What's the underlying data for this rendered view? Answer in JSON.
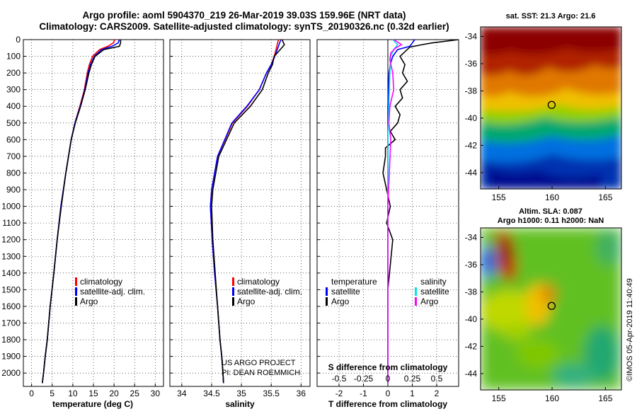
{
  "header": {
    "line1": "Argo profile: aoml 5904370_219 26-Mar-2019 39.03S 159.96E (NRT data)",
    "line2": "Climatology: CARS2009. Satellite-adjusted climatology: synTS_20190326.nc (0.32d earlier)"
  },
  "legends": {
    "climatology": "climatology",
    "satellite_adj": "satellite-adj. clim.",
    "argo": "Argo",
    "temperature": "temperature",
    "salinity": "salinity",
    "satellite": "satellite"
  },
  "credits": {
    "line1": "US ARGO PROJECT",
    "line2": "PI: DEAN ROEMMICH",
    "imos": "©IMOS 05-Apr-2019 11:40:49"
  },
  "maps": {
    "sst_title": "sat. SST: 21.3 Argo: 21.6",
    "sla_title1": "Altim. SLA: 0.087",
    "sla_title2": "Argo h1000: 0.11 h2000: NaN",
    "lat_ticks": [
      "-34",
      "-36",
      "-38",
      "-40",
      "-42",
      "-44"
    ],
    "lon_ticks": [
      "155",
      "160",
      "165"
    ],
    "float_lon": 159.96,
    "float_lat": -39.03
  },
  "colors": {
    "climatology": "#ff0000",
    "satellite_adj": "#0000ff",
    "argo": "#000000",
    "s_satellite": "#00e5e5",
    "s_argo": "#ff00ff"
  },
  "chart_data": [
    {
      "type": "line",
      "xlabel": "temperature (deg C)",
      "ylabel": "",
      "xlim": [
        -2,
        32
      ],
      "ylim": [
        2080,
        0
      ],
      "xticks": [
        0,
        5,
        10,
        15,
        20,
        25,
        30
      ],
      "yticks": [
        0,
        100,
        200,
        300,
        400,
        500,
        600,
        700,
        800,
        900,
        1000,
        1100,
        1200,
        1300,
        1400,
        1500,
        1600,
        1700,
        1800,
        1900,
        2000
      ],
      "series": [
        {
          "name": "climatology",
          "x": [
            20.2,
            19.8,
            18.5,
            16.5,
            14.8,
            14.0,
            13.5,
            12.8,
            11.7,
            10.5,
            9.6,
            8.3,
            7.1,
            6.2,
            5.4,
            4.5,
            3.8,
            3.3,
            2.9,
            2.6
          ],
          "y": [
            0,
            20,
            40,
            60,
            100,
            150,
            200,
            300,
            400,
            500,
            600,
            800,
            1000,
            1200,
            1400,
            1600,
            1800,
            1900,
            2000,
            2060
          ]
        },
        {
          "name": "satellite-adj. clim.",
          "x": [
            21.3,
            21.0,
            19.5,
            17.0,
            15.2,
            14.3,
            13.7,
            12.9,
            11.8,
            10.5,
            9.6,
            8.3,
            7.1,
            6.2,
            5.4,
            4.5,
            3.8,
            3.3,
            2.9,
            2.6
          ],
          "y": [
            0,
            20,
            40,
            60,
            100,
            150,
            200,
            300,
            400,
            500,
            600,
            800,
            1000,
            1200,
            1400,
            1600,
            1800,
            1900,
            2000,
            2060
          ]
        },
        {
          "name": "Argo",
          "x": [
            21.6,
            21.6,
            21.3,
            17.5,
            15.4,
            14.5,
            13.9,
            13.0,
            11.9,
            10.6,
            9.6,
            8.3,
            7.2,
            6.2,
            5.4,
            4.5,
            3.8,
            3.3,
            2.9,
            2.6
          ],
          "y": [
            0,
            20,
            40,
            60,
            100,
            150,
            200,
            300,
            400,
            500,
            600,
            800,
            1000,
            1200,
            1400,
            1600,
            1800,
            1900,
            2000,
            2060
          ]
        }
      ]
    },
    {
      "type": "line",
      "xlabel": "salinity",
      "ylabel": "",
      "xlim": [
        33.8,
        36.15
      ],
      "ylim": [
        2080,
        0
      ],
      "xticks": [
        34,
        34.5,
        35,
        35.5,
        36
      ],
      "series": [
        {
          "name": "climatology",
          "x": [
            35.62,
            35.6,
            35.58,
            35.55,
            35.5,
            35.42,
            35.3,
            35.1,
            34.85,
            34.6,
            34.5,
            34.48,
            34.51,
            34.55,
            34.6,
            34.64,
            34.67,
            34.69,
            34.7
          ],
          "y": [
            0,
            30,
            60,
            100,
            150,
            200,
            300,
            400,
            500,
            700,
            900,
            1000,
            1200,
            1400,
            1600,
            1800,
            1900,
            2000,
            2060
          ]
        },
        {
          "name": "satellite-adj. clim.",
          "x": [
            35.66,
            35.63,
            35.6,
            35.56,
            35.5,
            35.42,
            35.3,
            35.09,
            34.84,
            34.6,
            34.5,
            34.48,
            34.51,
            34.55,
            34.6,
            34.64,
            34.67,
            34.69,
            34.7
          ],
          "y": [
            0,
            30,
            60,
            100,
            150,
            200,
            300,
            400,
            500,
            700,
            900,
            1000,
            1200,
            1400,
            1600,
            1800,
            1900,
            2000,
            2060
          ]
        },
        {
          "name": "Argo",
          "x": [
            35.68,
            35.72,
            35.65,
            35.55,
            35.52,
            35.45,
            35.35,
            35.15,
            34.88,
            34.62,
            34.52,
            34.5,
            34.52,
            34.56,
            34.6,
            34.64,
            34.67,
            34.69,
            34.7
          ],
          "y": [
            0,
            30,
            60,
            100,
            150,
            200,
            300,
            400,
            500,
            700,
            900,
            1000,
            1200,
            1400,
            1600,
            1800,
            1900,
            2000,
            2060
          ]
        }
      ]
    },
    {
      "type": "line",
      "xlabel": "T difference from climatology",
      "xlabel2": "S difference from climatology",
      "ylabel": "",
      "xlim": [
        -2.9,
        2.9
      ],
      "ylim": [
        2080,
        0
      ],
      "xticks": [
        -2,
        -1,
        0,
        1,
        2
      ],
      "sticks": [
        -0.5,
        -0.25,
        0,
        0.25,
        0.5
      ],
      "series": [
        {
          "name": "temperature satellite",
          "x": [
            1.1,
            1.0,
            0.9,
            0.4,
            0.2,
            0.1,
            0.05,
            0.0,
            0.0,
            0.0,
            0.0,
            0.0
          ],
          "y": [
            0,
            20,
            40,
            60,
            100,
            150,
            200,
            400,
            600,
            1000,
            1500,
            2060
          ]
        },
        {
          "name": "temperature Argo",
          "x": [
            2.9,
            1.8,
            1.4,
            0.9,
            0.5,
            0.7,
            0.6,
            0.8,
            0.5,
            0.6,
            0.3,
            0.5,
            0.4,
            0.1,
            0.3,
            -0.1,
            -0.1,
            -0.2,
            -0.05,
            0.1,
            -0.05,
            0.2,
            0.0,
            0.0
          ],
          "y": [
            0,
            20,
            30,
            45,
            100,
            150,
            200,
            250,
            300,
            350,
            400,
            450,
            500,
            550,
            600,
            650,
            700,
            800,
            900,
            1000,
            1100,
            1200,
            1500,
            2060
          ]
        },
        {
          "name": "salinity satellite",
          "x": [
            0.05,
            0.1,
            0.06,
            0.03,
            0.02,
            0.01,
            0.0,
            0.0,
            0.0,
            0.0
          ],
          "y": [
            0,
            30,
            60,
            100,
            200,
            400,
            600,
            1000,
            1500,
            2060
          ]
        },
        {
          "name": "salinity Argo",
          "x": [
            0.06,
            0.14,
            0.08,
            0.03,
            0.02,
            0.05,
            0.06,
            0.02,
            0.01,
            0.03,
            0.0,
            0.0
          ],
          "y": [
            0,
            30,
            50,
            80,
            120,
            200,
            300,
            400,
            500,
            600,
            1000,
            2060
          ]
        }
      ]
    }
  ]
}
